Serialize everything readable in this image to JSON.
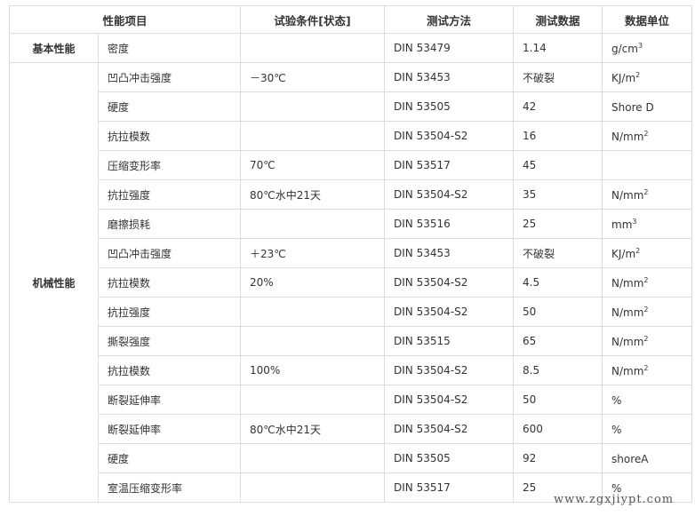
{
  "headers": [
    "性能项目",
    "试验条件[状态]",
    "测试方法",
    "测试数据",
    "数据单位"
  ],
  "groups": [
    {
      "category": "基本性能",
      "rows": [
        {
          "item": "密度",
          "condition": "",
          "method": "DIN 53479",
          "value": "1.14",
          "unit": "g/cm",
          "unit_sup": "3"
        }
      ]
    },
    {
      "category": "机械性能",
      "rows": [
        {
          "item": "凹凸冲击强度",
          "condition": "－30℃",
          "method": "DIN 53453",
          "value": "不破裂",
          "unit": "KJ/m",
          "unit_sup": "2"
        },
        {
          "item": "硬度",
          "condition": "",
          "method": "DIN 53505",
          "value": "42",
          "unit": "Shore D",
          "unit_sup": ""
        },
        {
          "item": "抗拉模数",
          "condition": "",
          "method": "DIN 53504-S2",
          "value": "16",
          "unit": "N/mm",
          "unit_sup": "2"
        },
        {
          "item": "压缩变形率",
          "condition": "70℃",
          "method": "DIN 53517",
          "value": "45",
          "unit": "",
          "unit_sup": ""
        },
        {
          "item": "抗拉强度",
          "condition": "80℃水中21天",
          "method": "DIN 53504-S2",
          "value": "35",
          "unit": "N/mm",
          "unit_sup": "2"
        },
        {
          "item": "磨擦损耗",
          "condition": "",
          "method": "DIN 53516",
          "value": "25",
          "unit": "mm",
          "unit_sup": "3"
        },
        {
          "item": "凹凸冲击强度",
          "condition": "＋23℃",
          "method": "DIN 53453",
          "value": "不破裂",
          "unit": "KJ/m",
          "unit_sup": "2"
        },
        {
          "item": "抗拉模数",
          "condition": "20%",
          "method": "DIN 53504-S2",
          "value": "4.5",
          "unit": "N/mm",
          "unit_sup": "2"
        },
        {
          "item": "抗拉强度",
          "condition": "",
          "method": "DIN 53504-S2",
          "value": "50",
          "unit": "N/mm",
          "unit_sup": "2"
        },
        {
          "item": "撕裂强度",
          "condition": "",
          "method": "DIN 53515",
          "value": "65",
          "unit": "N/mm",
          "unit_sup": "2"
        },
        {
          "item": "抗拉模数",
          "condition": "100%",
          "method": "DIN 53504-S2",
          "value": "8.5",
          "unit": "N/mm",
          "unit_sup": "2"
        },
        {
          "item": "断裂延伸率",
          "condition": "",
          "method": "DIN 53504-S2",
          "value": "50",
          "unit": "%",
          "unit_sup": ""
        },
        {
          "item": "断裂延伸率",
          "condition": "80℃水中21天",
          "method": "DIN 53504-S2",
          "value": "600",
          "unit": "%",
          "unit_sup": ""
        },
        {
          "item": "硬度",
          "condition": "",
          "method": "DIN 53505",
          "value": "92",
          "unit": "shoreA",
          "unit_sup": ""
        },
        {
          "item": "室温压缩变形率",
          "condition": "",
          "method": "DIN 53517",
          "value": "25",
          "unit": "%",
          "unit_sup": ""
        }
      ]
    }
  ],
  "watermark": "www.zgxjiypt.com"
}
